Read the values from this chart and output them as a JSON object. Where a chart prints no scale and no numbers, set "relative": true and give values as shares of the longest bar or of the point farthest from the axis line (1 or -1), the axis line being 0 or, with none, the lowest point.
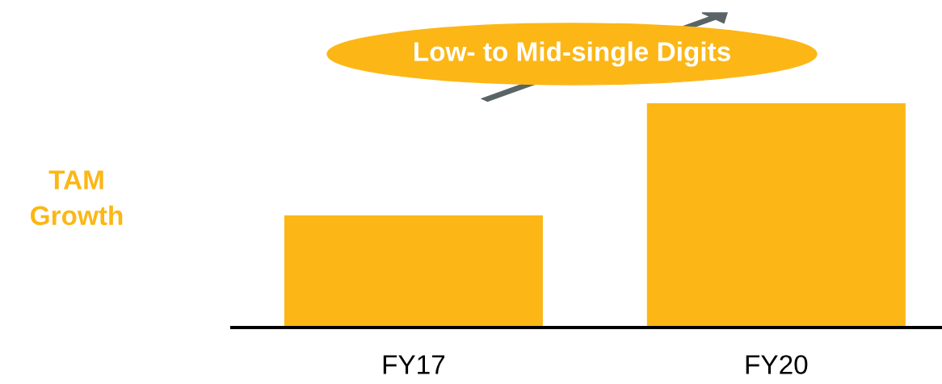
{
  "chart_data": {
    "type": "bar",
    "relative": true,
    "categories": [
      "FY17",
      "FY20"
    ],
    "values": [
      0.5,
      1
    ],
    "color": "#fcb716",
    "ylabel": "TAM\nGrowth",
    "annotations": [
      "Low- to Mid-single Digits"
    ],
    "grid": false,
    "tick_labels": "x"
  }
}
